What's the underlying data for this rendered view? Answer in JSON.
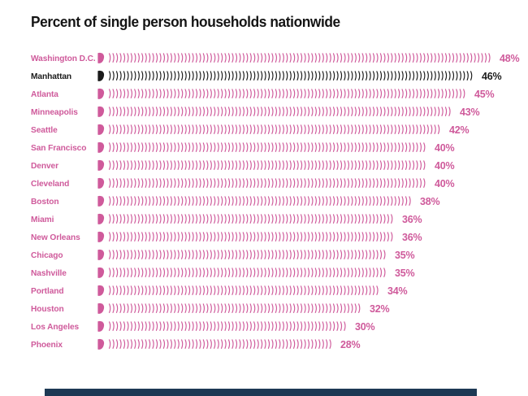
{
  "chart_data": {
    "type": "bar",
    "style": "pictogram-waves",
    "title": "Percent of single person households nationwide",
    "unit": "%",
    "categories": [
      "Washington D.C.",
      "Manhattan",
      "Atlanta",
      "Minneapolis",
      "Seattle",
      "San Francisco",
      "Denver",
      "Cleveland",
      "Boston",
      "Miami",
      "New Orleans",
      "Chicago",
      "Nashville",
      "Portland",
      "Houston",
      "Los Angeles",
      "Phoenix"
    ],
    "values": [
      48,
      46,
      45,
      43,
      42,
      40,
      40,
      40,
      38,
      36,
      36,
      35,
      35,
      34,
      32,
      30,
      28
    ],
    "value_labels": [
      "48%",
      "46%",
      "45%",
      "43%",
      "42%",
      "40%",
      "40%",
      "40%",
      "38%",
      "36%",
      "36%",
      "35%",
      "35%",
      "34%",
      "32%",
      "30%",
      "28%"
    ],
    "highlight": {
      "category": "Manhattan",
      "index": 1
    },
    "colors": {
      "accent": "#cf5a9b",
      "highlight": "#1a1a1a",
      "title": "#141414",
      "bottom_bar": "#1d3954"
    },
    "xlim": [
      0,
      50
    ],
    "grid": false,
    "legend": false,
    "axes_shown": false
  }
}
